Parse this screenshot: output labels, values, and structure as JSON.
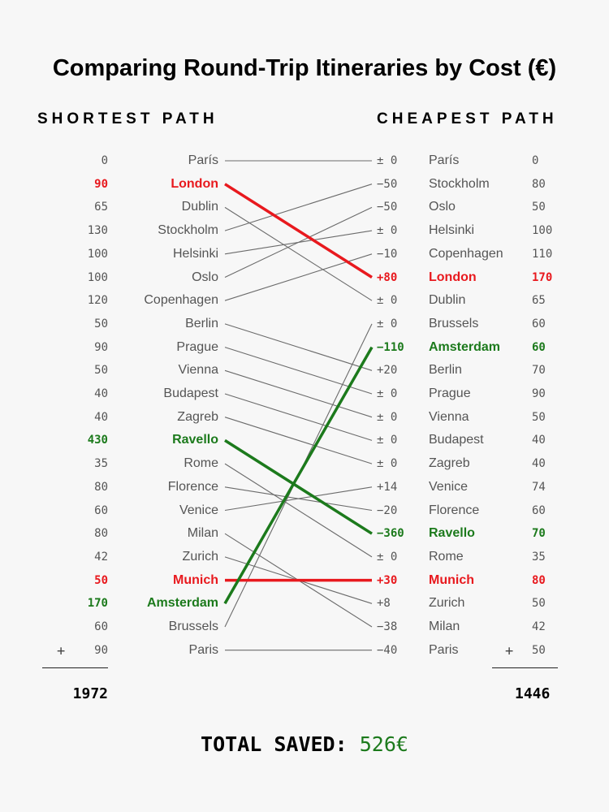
{
  "chart_data": {
    "type": "slope",
    "title": "Comparing Round-Trip Itineraries by Cost (€)",
    "left_header": "SHORTEST PATH",
    "right_header": "CHEAPEST PATH",
    "left": [
      {
        "city": "París",
        "cost": "0",
        "hl": ""
      },
      {
        "city": "London",
        "cost": "90",
        "hl": "red"
      },
      {
        "city": "Dublin",
        "cost": "65",
        "hl": ""
      },
      {
        "city": "Stockholm",
        "cost": "130",
        "hl": ""
      },
      {
        "city": "Helsinki",
        "cost": "100",
        "hl": ""
      },
      {
        "city": "Oslo",
        "cost": "100",
        "hl": ""
      },
      {
        "city": "Copenhagen",
        "cost": "120",
        "hl": ""
      },
      {
        "city": "Berlin",
        "cost": "50",
        "hl": ""
      },
      {
        "city": "Prague",
        "cost": "90",
        "hl": ""
      },
      {
        "city": "Vienna",
        "cost": "50",
        "hl": ""
      },
      {
        "city": "Budapest",
        "cost": "40",
        "hl": ""
      },
      {
        "city": "Zagreb",
        "cost": "40",
        "hl": ""
      },
      {
        "city": "Ravello",
        "cost": "430",
        "hl": "green"
      },
      {
        "city": "Rome",
        "cost": "35",
        "hl": ""
      },
      {
        "city": "Florence",
        "cost": "80",
        "hl": ""
      },
      {
        "city": "Venice",
        "cost": "60",
        "hl": ""
      },
      {
        "city": "Milan",
        "cost": "80",
        "hl": ""
      },
      {
        "city": "Zurich",
        "cost": "42",
        "hl": ""
      },
      {
        "city": "Munich",
        "cost": "50",
        "hl": "red"
      },
      {
        "city": "Amsterdam",
        "cost": "170",
        "hl": "green"
      },
      {
        "city": "Brussels",
        "cost": "60",
        "hl": ""
      },
      {
        "city": "Paris",
        "cost": "90",
        "hl": ""
      }
    ],
    "right": [
      {
        "city": "París",
        "cost": "0",
        "delta": "± 0",
        "hl": ""
      },
      {
        "city": "Stockholm",
        "cost": "80",
        "delta": "−50",
        "hl": ""
      },
      {
        "city": "Oslo",
        "cost": "50",
        "delta": "−50",
        "hl": ""
      },
      {
        "city": "Helsinki",
        "cost": "100",
        "delta": "± 0",
        "hl": ""
      },
      {
        "city": "Copenhagen",
        "cost": "110",
        "delta": "−10",
        "hl": ""
      },
      {
        "city": "London",
        "cost": "170",
        "delta": "+80",
        "hl": "red"
      },
      {
        "city": "Dublin",
        "cost": "65",
        "delta": "± 0",
        "hl": ""
      },
      {
        "city": "Brussels",
        "cost": "60",
        "delta": "± 0",
        "hl": ""
      },
      {
        "city": "Amsterdam",
        "cost": "60",
        "delta": "−110",
        "hl": "green"
      },
      {
        "city": "Berlin",
        "cost": "70",
        "delta": "+20",
        "hl": ""
      },
      {
        "city": "Prague",
        "cost": "90",
        "delta": "± 0",
        "hl": ""
      },
      {
        "city": "Vienna",
        "cost": "50",
        "delta": "± 0",
        "hl": ""
      },
      {
        "city": "Budapest",
        "cost": "40",
        "delta": "± 0",
        "hl": ""
      },
      {
        "city": "Zagreb",
        "cost": "40",
        "delta": "± 0",
        "hl": ""
      },
      {
        "city": "Venice",
        "cost": "74",
        "delta": "+14",
        "hl": ""
      },
      {
        "city": "Florence",
        "cost": "60",
        "delta": "−20",
        "hl": ""
      },
      {
        "city": "Ravello",
        "cost": "70",
        "delta": "−360",
        "hl": "green"
      },
      {
        "city": "Rome",
        "cost": "35",
        "delta": "± 0",
        "hl": ""
      },
      {
        "city": "Munich",
        "cost": "80",
        "delta": "+30",
        "hl": "red"
      },
      {
        "city": "Zurich",
        "cost": "50",
        "delta": "+8",
        "hl": ""
      },
      {
        "city": "Milan",
        "cost": "42",
        "delta": "−38",
        "hl": ""
      },
      {
        "city": "Paris",
        "cost": "50",
        "delta": "−40",
        "hl": ""
      }
    ],
    "links": [
      [
        0,
        0
      ],
      [
        1,
        5
      ],
      [
        2,
        6
      ],
      [
        3,
        1
      ],
      [
        4,
        3
      ],
      [
        5,
        2
      ],
      [
        6,
        4
      ],
      [
        7,
        9
      ],
      [
        8,
        10
      ],
      [
        9,
        11
      ],
      [
        10,
        12
      ],
      [
        11,
        13
      ],
      [
        12,
        16
      ],
      [
        13,
        17
      ],
      [
        14,
        15
      ],
      [
        15,
        14
      ],
      [
        16,
        20
      ],
      [
        17,
        19
      ],
      [
        18,
        18
      ],
      [
        19,
        8
      ],
      [
        20,
        7
      ],
      [
        21,
        21
      ]
    ],
    "left_total": "1972",
    "right_total": "1446",
    "plus_sign": "+",
    "saved_label": "TOTAL SAVED:",
    "saved_value": "526€",
    "colors": {
      "red": "#e8191e",
      "green": "#1c7a1c",
      "line": "#6b6b6b"
    }
  }
}
